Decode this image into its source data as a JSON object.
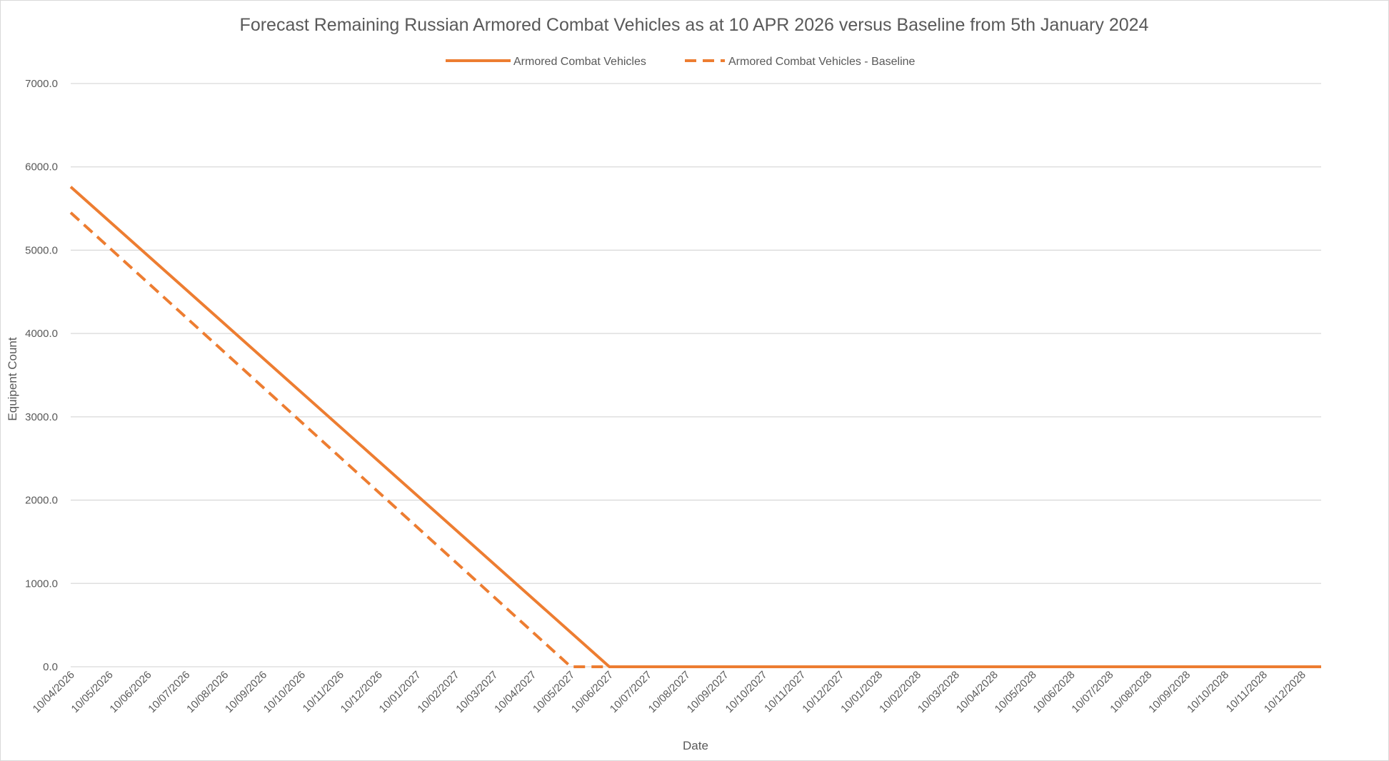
{
  "chart_data": {
    "type": "line",
    "title": "Forecast Remaining Russian Armored Combat Vehicles as at 10 APR 2026 versus Baseline from 5th January 2024",
    "xlabel": "Date",
    "ylabel": "Equipent Count",
    "ylim": [
      0,
      7000
    ],
    "yticks": [
      "0.0",
      "1000.0",
      "2000.0",
      "3000.0",
      "4000.0",
      "5000.0",
      "6000.0",
      "7000.0"
    ],
    "ytick_values": [
      0,
      1000,
      2000,
      3000,
      4000,
      5000,
      6000,
      7000
    ],
    "categories": [
      "10/04/2026",
      "10/05/2026",
      "10/06/2026",
      "10/07/2026",
      "10/08/2026",
      "10/09/2026",
      "10/10/2026",
      "10/11/2026",
      "10/12/2026",
      "10/01/2027",
      "10/02/2027",
      "10/03/2027",
      "10/04/2027",
      "10/05/2027",
      "10/06/2027",
      "10/07/2027",
      "10/08/2027",
      "10/09/2027",
      "10/10/2027",
      "10/11/2027",
      "10/12/2027",
      "10/01/2028",
      "10/02/2028",
      "10/03/2028",
      "10/04/2028",
      "10/05/2028",
      "10/06/2028",
      "10/07/2028",
      "10/08/2028",
      "10/09/2028",
      "10/10/2028",
      "10/11/2028",
      "10/12/2028"
    ],
    "grid": true,
    "legend_position": "top",
    "series": [
      {
        "name": "Armored Combat Vehicles",
        "color": "#ED7D31",
        "style": "solid",
        "x": [
          0,
          14,
          32.5
        ],
        "values": [
          5760,
          0,
          0
        ]
      },
      {
        "name": "Armored Combat Vehicles - Baseline",
        "color": "#ED7D31",
        "style": "dashed",
        "x": [
          0,
          13,
          14
        ],
        "values": [
          5450,
          0,
          0
        ]
      }
    ]
  }
}
